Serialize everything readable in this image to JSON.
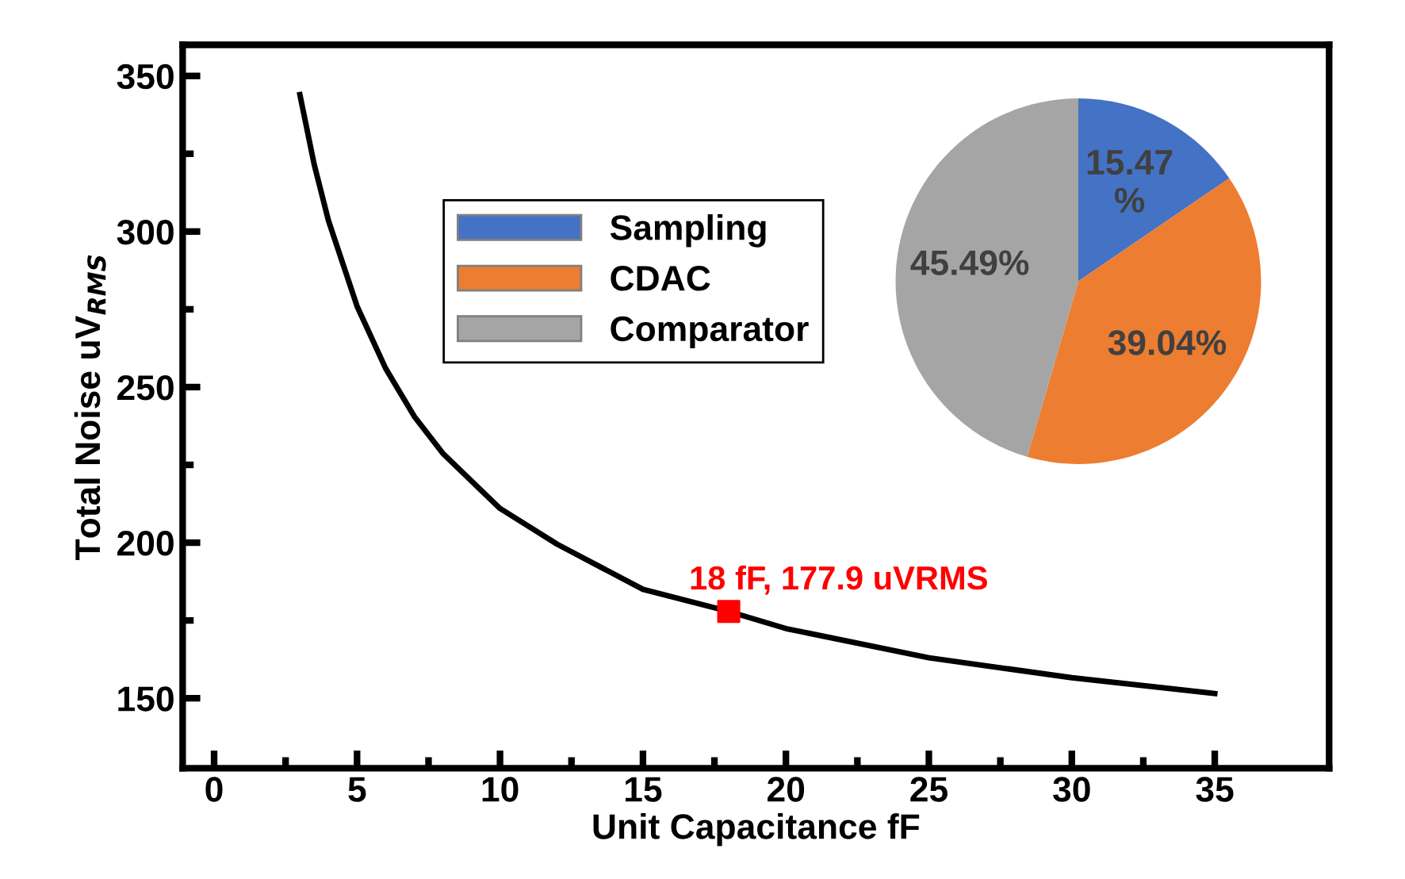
{
  "chart_data": [
    {
      "type": "line",
      "xlabel": "Unit Capacitance fF",
      "ylabel": "Total Noise uV$_{RMS}$",
      "xlim": [
        -1.1,
        39
      ],
      "ylim": [
        127.5,
        360
      ],
      "xticks": [
        0,
        {
          "value": 2.5,
          "label": null
        },
        5,
        {
          "value": 7.5,
          "label": null
        },
        10,
        {
          "value": 12.5,
          "label": null
        },
        15,
        {
          "value": 17.5,
          "label": null
        },
        20,
        {
          "value": 22.5,
          "label": null
        },
        25,
        {
          "value": 27.5,
          "label": null
        },
        30,
        {
          "value": 32.5,
          "label": null
        },
        35
      ],
      "yticks": [
        150,
        {
          "value": 175,
          "label": null
        },
        200,
        {
          "value": 225,
          "label": null
        },
        250,
        {
          "value": 275,
          "label": null
        },
        300,
        {
          "value": 325,
          "label": null
        },
        350
      ],
      "grid": false,
      "series": [
        {
          "type": "line",
          "color": "#000000",
          "x": [
            3,
            3.5,
            4,
            5,
            6,
            7,
            8,
            10,
            12,
            15,
            18,
            20,
            25,
            30,
            35
          ],
          "values": [
            344,
            321.6,
            303.5,
            276,
            256,
            240.6,
            228.7,
            211,
            199.5,
            185,
            177.9,
            172.4,
            163,
            156.6,
            151.5
          ]
        },
        {
          "type": "scatter",
          "color": "#ff0000",
          "marker": "square",
          "x": [
            18
          ],
          "values": [
            177.9
          ]
        }
      ],
      "annotations": [
        {
          "text": "18 fF, 177.9 uVRMS",
          "x": 18,
          "y": 177.9
        }
      ]
    },
    {
      "type": "pie",
      "categories": [
        "Sampling",
        "CDAC",
        "Comparator"
      ],
      "values": [
        15.47,
        39.04,
        45.49
      ],
      "colors": [
        "#4472c4",
        "#ed7d31",
        "#a5a5a5"
      ],
      "value_labels": [
        "15.47\n%",
        "39.04%",
        "45.49%"
      ],
      "legend": "left"
    }
  ]
}
